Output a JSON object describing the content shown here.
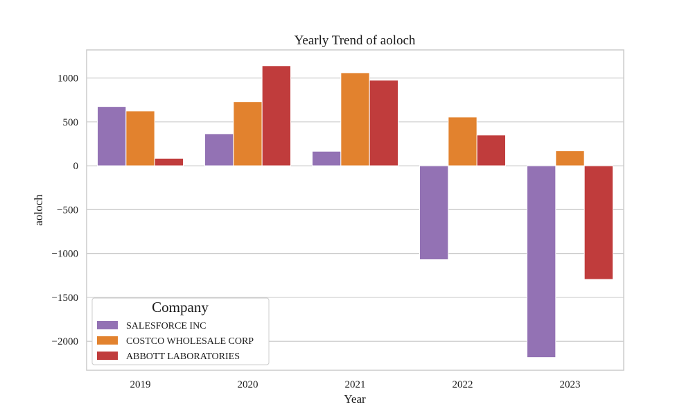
{
  "chart_data": {
    "type": "bar",
    "title": "Yearly Trend of aoloch",
    "xlabel": "Year",
    "ylabel": "aoloch",
    "categories": [
      "2019",
      "2020",
      "2021",
      "2022",
      "2023"
    ],
    "ylim": [
      -2330,
      1320
    ],
    "yticks": [
      1000,
      500,
      0,
      -500,
      -1000,
      -1500,
      -2000
    ],
    "ytick_labels": [
      "1000",
      "500",
      "0",
      "−500",
      "−1000",
      "−1500",
      "−2000"
    ],
    "grid": true,
    "legend": {
      "title": "Company",
      "placement": "lower-left"
    },
    "series": [
      {
        "name": "SALESFORCE INC",
        "color": "#9372b4",
        "values": [
          675,
          365,
          165,
          -1070,
          -2185
        ]
      },
      {
        "name": "COSTCO WHOLESALE CORP",
        "color": "#e2822e",
        "values": [
          625,
          730,
          1060,
          555,
          170
        ]
      },
      {
        "name": "ABBOTT LABORATORIES",
        "color": "#c03c3c",
        "values": [
          85,
          1140,
          975,
          350,
          -1295
        ]
      }
    ]
  }
}
